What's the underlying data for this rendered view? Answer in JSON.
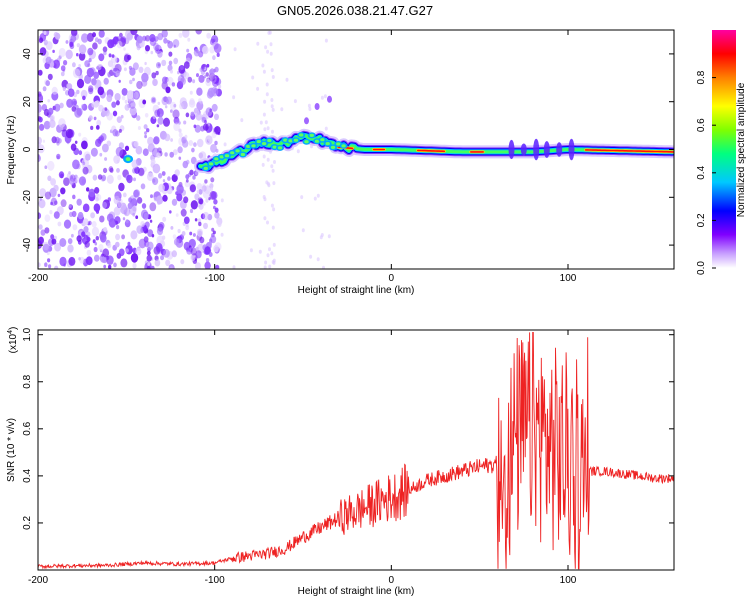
{
  "title": "GN05.2026.038.21.47.G27",
  "chart_data": [
    {
      "type": "heatmap",
      "name": "spectrogram",
      "title": "GN05.2026.038.21.47.G27",
      "xlabel": "Height of straight line (km)",
      "ylabel": "Frequency (Hz)",
      "xlim": [
        -200,
        160
      ],
      "ylim": [
        -50,
        50
      ],
      "x_ticks": [
        -200,
        -100,
        0,
        100
      ],
      "x_tick_labels": [
        "-200",
        "-100",
        "0",
        "100"
      ],
      "y_ticks": [
        -40,
        -20,
        0,
        20,
        40
      ],
      "y_tick_labels": [
        "-40",
        "-20",
        "0",
        "20",
        "40"
      ],
      "colorbar": {
        "label": "Normalized spectral amplitude",
        "range": [
          0,
          1
        ],
        "ticks": [
          0.0,
          0.2,
          0.4,
          0.6,
          0.8
        ],
        "tick_labels": [
          "0.0",
          "0.2",
          "0.4",
          "0.6",
          "0.8"
        ],
        "colors": [
          "#ffffff",
          "#c8a0ff",
          "#8000ff",
          "#0000ff",
          "#00c8ff",
          "#00ff80",
          "#80ff00",
          "#ffff00",
          "#ff8000",
          "#ff0000",
          "#ff00a0"
        ]
      },
      "ridge": [
        {
          "x": -105,
          "y": -7
        },
        {
          "x": -95,
          "y": -4
        },
        {
          "x": -85,
          "y": -1
        },
        {
          "x": -75,
          "y": 3
        },
        {
          "x": -62,
          "y": 2
        },
        {
          "x": -52,
          "y": 5
        },
        {
          "x": -40,
          "y": 4
        },
        {
          "x": -30,
          "y": 1
        },
        {
          "x": -15,
          "y": 0
        },
        {
          "x": 0,
          "y": 0
        },
        {
          "x": 40,
          "y": -1
        },
        {
          "x": 80,
          "y": -1
        },
        {
          "x": 100,
          "y": 0
        },
        {
          "x": 160,
          "y": -1
        }
      ],
      "noise_region": [
        -200,
        -105
      ]
    },
    {
      "type": "line",
      "name": "snr",
      "xlabel": "Height of straight line (km)",
      "ylabel": "SNR (10 * v/v)",
      "y_multiplier": "(x10",
      "y_multiplier_exp": "4",
      "y_multiplier_close": ")",
      "xlim": [
        -200,
        160
      ],
      "ylim": [
        0,
        1.02
      ],
      "x_ticks": [
        -200,
        -100,
        0,
        100
      ],
      "x_tick_labels": [
        "-200",
        "-100",
        "0",
        "100"
      ],
      "y_ticks": [
        0.2,
        0.4,
        0.6,
        0.8,
        1.0
      ],
      "y_tick_labels": [
        "0.2",
        "0.4",
        "0.6",
        "0.8",
        "1.0"
      ],
      "series": [
        {
          "name": "SNR",
          "color": "#ee2222",
          "x": [
            -200,
            -180,
            -160,
            -140,
            -120,
            -100,
            -90,
            -80,
            -70,
            -60,
            -50,
            -40,
            -30,
            -20,
            -10,
            0,
            10,
            20,
            30,
            40,
            50,
            60,
            62,
            70,
            80,
            90,
            100,
            105,
            110,
            120,
            130,
            140,
            150,
            160
          ],
          "values": [
            0.015,
            0.018,
            0.02,
            0.03,
            0.025,
            0.03,
            0.05,
            0.06,
            0.07,
            0.09,
            0.14,
            0.18,
            0.22,
            0.25,
            0.28,
            0.31,
            0.34,
            0.38,
            0.4,
            0.42,
            0.44,
            0.45,
            0.3,
            0.55,
            0.6,
            0.52,
            0.48,
            0.35,
            0.42,
            0.42,
            0.41,
            0.4,
            0.39,
            0.39
          ]
        }
      ]
    }
  ]
}
